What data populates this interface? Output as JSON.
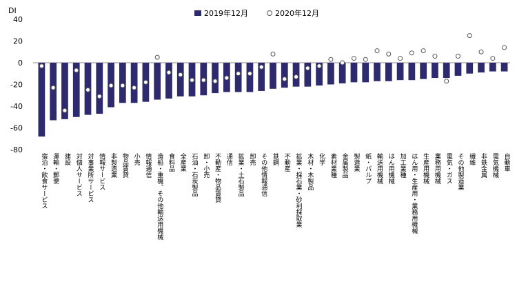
{
  "chart_data": {
    "type": "bar",
    "title": "",
    "ylabel": "DI",
    "xlabel": "",
    "ylim": [
      -80,
      40
    ],
    "yticks": [
      40,
      20,
      0,
      -20,
      -40,
      -60,
      -80
    ],
    "grid": false,
    "legend_position": "top",
    "colors": {
      "bar": "#2E2A6E",
      "marker_fill": "#ffffff",
      "marker_stroke": "#555555",
      "axis": "#888888"
    },
    "categories": [
      "宿泊・飲食サービス",
      "運輸・郵便",
      "建設",
      "対個人サービス",
      "対事業所サービス",
      "情報サービス",
      "非製造業",
      "物品賃貸",
      "小売",
      "情報通信",
      "造船・重機、その他輸送用機械",
      "食料品",
      "全産業",
      "石油・石炭製品",
      "卸・小売",
      "不動産・物品賃貸",
      "通信",
      "鉱業・土石製品",
      "卸売",
      "その他情報通信",
      "鉄鋼",
      "不動産",
      "鉱業・採石業・砂利採取業",
      "木材・木製品",
      "化学",
      "素材業種",
      "金属製品",
      "製造業",
      "紙・パルプ",
      "輸送用機械",
      "はん用機械",
      "加工業種",
      "はん用・生産用・業務用機械",
      "生産用機械",
      "業務用機械",
      "電気・ガス",
      "その他製造業",
      "繊維",
      "非鉄金属",
      "電気機械",
      "自動車"
    ],
    "series": [
      {
        "name": "2019年12月",
        "kind": "bar",
        "values": [
          -68,
          -53,
          -52,
          -50,
          -48,
          -47,
          -41,
          -37,
          -37,
          -36,
          -34,
          -33,
          -31,
          -31,
          -30,
          -28,
          -27,
          -27,
          -27,
          -26,
          -24,
          -23,
          -22,
          -22,
          -21,
          -20,
          -19,
          -18,
          -18,
          -17,
          -17,
          -16,
          -16,
          -15,
          -14,
          -14,
          -12,
          -10,
          -9,
          -8,
          -8
        ]
      },
      {
        "name": "2020年12月",
        "kind": "marker",
        "values": [
          -3,
          -23,
          -44,
          -7,
          -25,
          -31,
          -21,
          -21,
          -23,
          -18,
          5,
          -9,
          -11,
          -16,
          -16,
          -17,
          -14,
          -10,
          -10,
          -4,
          8,
          -15,
          -13,
          -5,
          -3,
          3,
          0,
          4,
          3,
          11,
          8,
          4,
          9,
          11,
          6,
          -17,
          6,
          25,
          10,
          4,
          14
        ]
      }
    ]
  }
}
